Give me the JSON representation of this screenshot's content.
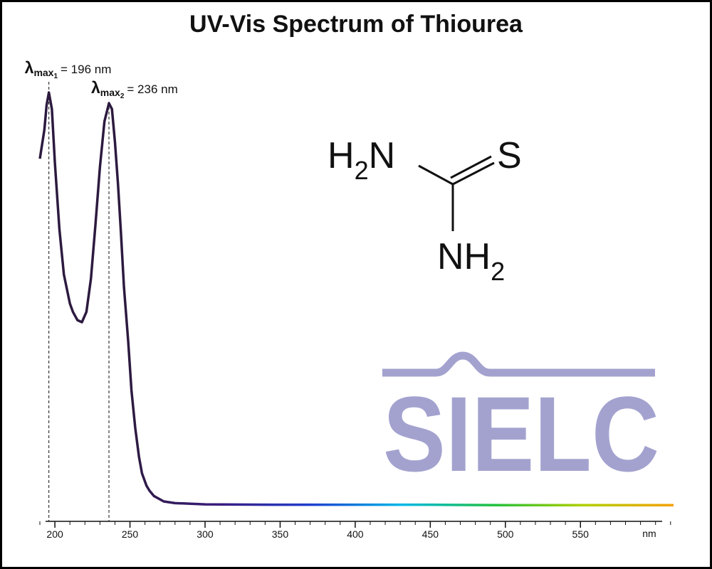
{
  "chart_data": {
    "type": "line",
    "title": "UV-Vis Spectrum of Thiourea",
    "xlabel": "nm",
    "xlim": [
      190,
      612
    ],
    "ylim": [
      0,
      1
    ],
    "xticks": [
      200,
      250,
      300,
      350,
      400,
      450,
      500,
      550
    ],
    "xminor_ticks": [
      190,
      210,
      220,
      230,
      240,
      260,
      270,
      280,
      290,
      310,
      320,
      330,
      340,
      360,
      370,
      380,
      390,
      410,
      420,
      430,
      440,
      460,
      470,
      480,
      490,
      510,
      520,
      530,
      540,
      560,
      570,
      580,
      590,
      600,
      610
    ],
    "x": [
      190,
      193,
      194.5,
      196,
      198,
      200,
      203,
      206,
      210,
      212,
      215,
      218,
      221,
      224,
      227,
      230,
      233,
      236,
      238,
      240,
      242,
      244,
      246,
      248.8,
      251,
      253.5,
      256,
      258,
      261,
      263,
      266,
      272.5,
      280,
      300,
      350,
      400,
      450,
      500,
      550,
      600,
      612
    ],
    "series": [
      {
        "color": "#2d1a3f",
        "gradient": [
          "#2d1a3f",
          "#2d1a3f",
          "#3a1d80",
          "#1f3fd0",
          "#00b8e8",
          "#20c040",
          "#b0d000",
          "#f5a000"
        ],
        "values": [
          0.84,
          0.91,
          0.97,
          1.0,
          0.96,
          0.83,
          0.67,
          0.56,
          0.49,
          0.47,
          0.45,
          0.445,
          0.47,
          0.55,
          0.68,
          0.82,
          0.93,
          0.974,
          0.96,
          0.88,
          0.78,
          0.66,
          0.53,
          0.4,
          0.28,
          0.19,
          0.12,
          0.08,
          0.05,
          0.038,
          0.025,
          0.012,
          0.008,
          0.005,
          0.004,
          0.004,
          0.004,
          0.003,
          0.003,
          0.003,
          0.003
        ]
      }
    ],
    "annotations": [
      {
        "symbol": "λ",
        "sub": "max",
        "index": "1",
        "text": "= 196 nm",
        "x": 196
      },
      {
        "symbol": "λ",
        "sub": "max",
        "index": "2",
        "text": "= 236 nm",
        "x": 236
      }
    ],
    "molecule": {
      "amine1": [
        "H",
        "2",
        "N"
      ],
      "sulfur": "S",
      "amine2": [
        "NH",
        "2"
      ]
    },
    "watermark": "SIELC"
  }
}
